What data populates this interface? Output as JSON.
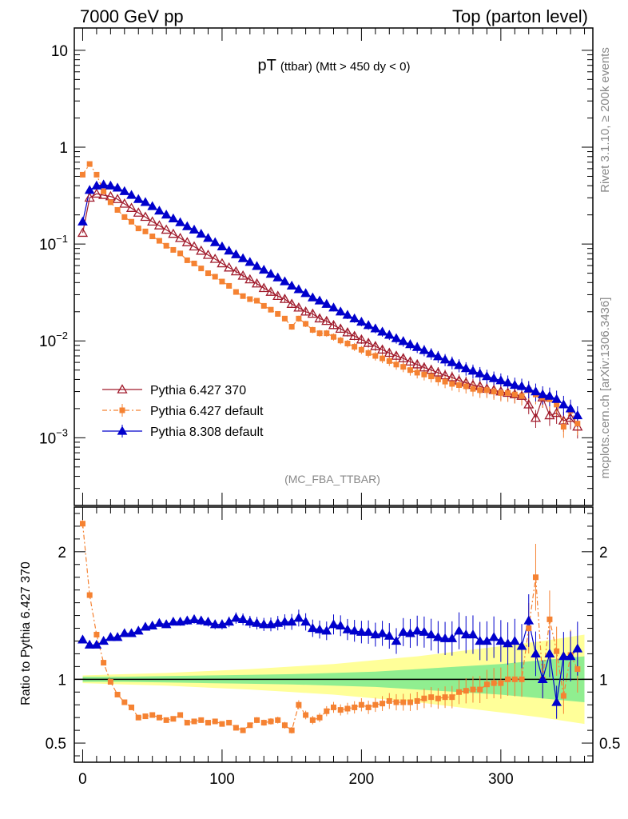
{
  "header": {
    "left": "7000 GeV pp",
    "right": "Top (parton level)"
  },
  "plot_title": {
    "main": "pT",
    "sub": "(ttbar) (Mtt > 450 dy < 0)"
  },
  "side_labels": {
    "rivet": "Rivet 3.1.10, ≥ 200k events",
    "mcplots": "mcplots.cern.ch [arXiv:1306.3436]"
  },
  "analysis_tag": "(MC_FBA_TTBAR)",
  "ratio_ylabel": "Ratio to Pythia 6.427 370",
  "colors": {
    "p6_370": "#a01a2b",
    "p6_default": "#f58232",
    "p8": "#0000cc",
    "band_inner": "#90ee90",
    "band_outer": "#ffff99"
  },
  "chart_data": [
    {
      "type": "scatter",
      "yscale": "log",
      "xlim": [
        -6,
        366
      ],
      "ylim": [
        0.0002,
        17
      ],
      "yticks": [
        0.001,
        0.01,
        0.1,
        1,
        10
      ],
      "ytick_labels": [
        "10^-3",
        "10^-2",
        "10^-1",
        "1",
        "10"
      ],
      "legend_position": "lower-left",
      "series": [
        {
          "name": "Pythia 6.427 370",
          "marker": "open-triangle",
          "x": [
            0,
            5,
            10,
            15,
            20,
            25,
            30,
            35,
            40,
            45,
            50,
            55,
            60,
            65,
            70,
            75,
            80,
            85,
            90,
            95,
            100,
            105,
            110,
            115,
            120,
            125,
            130,
            135,
            140,
            145,
            150,
            155,
            160,
            165,
            170,
            175,
            180,
            185,
            190,
            195,
            200,
            205,
            210,
            215,
            220,
            225,
            230,
            235,
            240,
            245,
            250,
            255,
            260,
            265,
            270,
            275,
            280,
            285,
            290,
            295,
            300,
            305,
            310,
            315,
            320,
            325,
            330,
            335,
            340,
            345,
            350,
            355
          ],
          "y": [
            0.13,
            0.3,
            0.33,
            0.32,
            0.31,
            0.29,
            0.26,
            0.235,
            0.21,
            0.19,
            0.17,
            0.155,
            0.14,
            0.127,
            0.115,
            0.104,
            0.094,
            0.085,
            0.077,
            0.07,
            0.063,
            0.057,
            0.052,
            0.047,
            0.043,
            0.039,
            0.035,
            0.032,
            0.029,
            0.027,
            0.024,
            0.022,
            0.02,
            0.019,
            0.017,
            0.016,
            0.0145,
            0.0133,
            0.0122,
            0.0112,
            0.0103,
            0.0095,
            0.0088,
            0.0081,
            0.0075,
            0.007,
            0.0066,
            0.0061,
            0.0057,
            0.0053,
            0.005,
            0.0047,
            0.0044,
            0.0042,
            0.0039,
            0.0037,
            0.0035,
            0.0034,
            0.0032,
            0.0031,
            0.003,
            0.0029,
            0.0028,
            0.0027,
            0.0022,
            0.0016,
            0.0026,
            0.0017,
            0.0018,
            0.0015,
            0.0016,
            0.0013
          ]
        },
        {
          "name": "Pythia 6.427 default",
          "marker": "filled-square",
          "x": [
            0,
            5,
            10,
            15,
            20,
            25,
            30,
            35,
            40,
            45,
            50,
            55,
            60,
            65,
            70,
            75,
            80,
            85,
            90,
            95,
            100,
            105,
            110,
            115,
            120,
            125,
            130,
            135,
            140,
            145,
            150,
            155,
            160,
            165,
            170,
            175,
            180,
            185,
            190,
            195,
            200,
            205,
            210,
            215,
            220,
            225,
            230,
            235,
            240,
            245,
            250,
            255,
            260,
            265,
            270,
            275,
            280,
            285,
            290,
            295,
            300,
            305,
            310,
            315,
            320,
            325,
            330,
            335,
            340,
            345,
            350,
            355
          ],
          "y": [
            0.52,
            0.67,
            0.52,
            0.35,
            0.27,
            0.225,
            0.19,
            0.17,
            0.145,
            0.135,
            0.12,
            0.108,
            0.096,
            0.087,
            0.08,
            0.068,
            0.063,
            0.056,
            0.05,
            0.046,
            0.041,
            0.037,
            0.032,
            0.029,
            0.027,
            0.026,
            0.023,
            0.021,
            0.019,
            0.017,
            0.014,
            0.017,
            0.015,
            0.013,
            0.012,
            0.012,
            0.011,
            0.0101,
            0.0094,
            0.0087,
            0.0081,
            0.0075,
            0.007,
            0.0066,
            0.0062,
            0.0057,
            0.0054,
            0.005,
            0.0047,
            0.0045,
            0.0043,
            0.004,
            0.0038,
            0.0036,
            0.0035,
            0.0034,
            0.0032,
            0.0031,
            0.0031,
            0.003,
            0.0029,
            0.0029,
            0.0028,
            0.0027,
            0.0031,
            0.0028,
            0.0026,
            0.0025,
            0.0022,
            0.0013,
            0.0019,
            0.0014
          ]
        },
        {
          "name": "Pythia 8.308 default",
          "marker": "filled-triangle",
          "x": [
            0,
            5,
            10,
            15,
            20,
            25,
            30,
            35,
            40,
            45,
            50,
            55,
            60,
            65,
            70,
            75,
            80,
            85,
            90,
            95,
            100,
            105,
            110,
            115,
            120,
            125,
            130,
            135,
            140,
            145,
            150,
            155,
            160,
            165,
            170,
            175,
            180,
            185,
            190,
            195,
            200,
            205,
            210,
            215,
            220,
            225,
            230,
            235,
            240,
            245,
            250,
            255,
            260,
            265,
            270,
            275,
            280,
            285,
            290,
            295,
            300,
            305,
            310,
            315,
            320,
            325,
            330,
            335,
            340,
            345,
            350,
            355
          ],
          "y": [
            0.17,
            0.36,
            0.4,
            0.41,
            0.4,
            0.38,
            0.35,
            0.32,
            0.29,
            0.27,
            0.245,
            0.22,
            0.2,
            0.183,
            0.167,
            0.152,
            0.14,
            0.127,
            0.115,
            0.104,
            0.094,
            0.085,
            0.078,
            0.071,
            0.065,
            0.059,
            0.054,
            0.049,
            0.045,
            0.041,
            0.037,
            0.034,
            0.031,
            0.028,
            0.026,
            0.024,
            0.022,
            0.02,
            0.0185,
            0.017,
            0.0157,
            0.0145,
            0.0134,
            0.0124,
            0.0115,
            0.0106,
            0.0099,
            0.0092,
            0.0086,
            0.008,
            0.0074,
            0.0069,
            0.0064,
            0.006,
            0.0056,
            0.0052,
            0.0049,
            0.0046,
            0.0043,
            0.0041,
            0.0039,
            0.0037,
            0.0035,
            0.0034,
            0.0032,
            0.003,
            0.0028,
            0.0027,
            0.0025,
            0.0022,
            0.002,
            0.0017
          ]
        }
      ]
    },
    {
      "type": "scatter",
      "yscale": "linear",
      "xlim": [
        -6,
        366
      ],
      "ylim": [
        0.35,
        2.35
      ],
      "yticks": [
        0.5,
        1,
        2
      ],
      "ytick_labels": [
        "0.5",
        "1",
        "2"
      ],
      "xticks": [
        0,
        100,
        200,
        300
      ],
      "xtick_labels": [
        "0",
        "100",
        "200",
        "300"
      ],
      "ylabel": "Ratio to Pythia 6.427 370",
      "band": {
        "x": [
          0,
          30,
          60,
          90,
          120,
          150,
          180,
          210,
          240,
          270,
          300,
          330,
          360
        ],
        "inner_half_width": [
          0.02,
          0.02,
          0.025,
          0.03,
          0.035,
          0.04,
          0.05,
          0.06,
          0.08,
          0.1,
          0.12,
          0.15,
          0.18
        ],
        "outer_half_width": [
          0.03,
          0.04,
          0.05,
          0.065,
          0.08,
          0.1,
          0.12,
          0.15,
          0.18,
          0.22,
          0.26,
          0.3,
          0.35
        ]
      },
      "series": [
        {
          "name": "Pythia 6.427 default",
          "x": [
            0,
            5,
            10,
            15,
            20,
            25,
            30,
            35,
            40,
            45,
            50,
            55,
            60,
            65,
            70,
            75,
            80,
            85,
            90,
            95,
            100,
            105,
            110,
            115,
            120,
            125,
            130,
            135,
            140,
            145,
            150,
            155,
            160,
            165,
            170,
            175,
            180,
            185,
            190,
            195,
            200,
            205,
            210,
            215,
            220,
            225,
            230,
            235,
            240,
            245,
            250,
            255,
            260,
            265,
            270,
            275,
            280,
            285,
            290,
            295,
            300,
            305,
            310,
            315,
            320,
            325,
            330,
            335,
            340,
            345,
            350,
            355
          ],
          "y": [
            2.22,
            1.66,
            1.35,
            1.13,
            0.98,
            0.88,
            0.82,
            0.78,
            0.7,
            0.71,
            0.72,
            0.7,
            0.68,
            0.69,
            0.72,
            0.66,
            0.67,
            0.68,
            0.66,
            0.67,
            0.65,
            0.66,
            0.62,
            0.6,
            0.64,
            0.68,
            0.66,
            0.67,
            0.68,
            0.64,
            0.6,
            0.8,
            0.72,
            0.68,
            0.7,
            0.75,
            0.78,
            0.76,
            0.77,
            0.78,
            0.8,
            0.78,
            0.8,
            0.81,
            0.83,
            0.82,
            0.82,
            0.82,
            0.83,
            0.85,
            0.86,
            0.85,
            0.86,
            0.86,
            0.9,
            0.91,
            0.92,
            0.92,
            0.96,
            0.97,
            0.97,
            1.0,
            1.0,
            1.0,
            1.4,
            1.8,
            1.0,
            1.47,
            1.22,
            0.87,
            1.19,
            1.08
          ]
        },
        {
          "name": "Pythia 8.308 default",
          "x": [
            0,
            5,
            10,
            15,
            20,
            25,
            30,
            35,
            40,
            45,
            50,
            55,
            60,
            65,
            70,
            75,
            80,
            85,
            90,
            95,
            100,
            105,
            110,
            115,
            120,
            125,
            130,
            135,
            140,
            145,
            150,
            155,
            160,
            165,
            170,
            175,
            180,
            185,
            190,
            195,
            200,
            205,
            210,
            215,
            220,
            225,
            230,
            235,
            240,
            245,
            250,
            255,
            260,
            265,
            270,
            275,
            280,
            285,
            290,
            295,
            300,
            305,
            310,
            315,
            320,
            325,
            330,
            335,
            340,
            345,
            350,
            355
          ],
          "y": [
            1.31,
            1.27,
            1.27,
            1.3,
            1.33,
            1.33,
            1.36,
            1.36,
            1.38,
            1.41,
            1.42,
            1.44,
            1.43,
            1.45,
            1.45,
            1.46,
            1.47,
            1.46,
            1.45,
            1.43,
            1.43,
            1.45,
            1.48,
            1.47,
            1.45,
            1.44,
            1.43,
            1.43,
            1.44,
            1.45,
            1.45,
            1.48,
            1.45,
            1.4,
            1.39,
            1.38,
            1.43,
            1.42,
            1.39,
            1.38,
            1.37,
            1.37,
            1.35,
            1.36,
            1.34,
            1.3,
            1.37,
            1.36,
            1.38,
            1.37,
            1.35,
            1.33,
            1.32,
            1.32,
            1.38,
            1.35,
            1.35,
            1.3,
            1.3,
            1.33,
            1.3,
            1.28,
            1.3,
            1.26,
            1.46,
            1.2,
            1.0,
            1.2,
            0.82,
            1.18,
            1.18,
            1.24
          ]
        }
      ]
    }
  ]
}
